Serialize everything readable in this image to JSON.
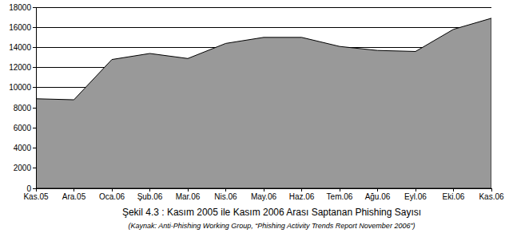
{
  "chart_data": {
    "type": "area",
    "title": "Şekil 4.3 :  Kasım 2005 ile Kasım 2006 Arası Saptanan Phishing Sayısı",
    "subtitle": "(Kaynak: Anti-Phishing Working Group, “Phishing Activity Trends Report November 2006”)",
    "categories": [
      "Kas.05",
      "Ara.05",
      "Oca.06",
      "Şub.06",
      "Mar.06",
      "Nis.06",
      "May.06",
      "Haz.06",
      "Tem.06",
      "Ağu.06",
      "Eyl.06",
      "Eki.06",
      "Kas.06"
    ],
    "values": [
      8900,
      8800,
      12800,
      13400,
      12900,
      14400,
      15000,
      15000,
      14100,
      13700,
      13600,
      15800,
      16900
    ],
    "color": "#999999",
    "ylim": [
      0,
      18000
    ],
    "yticks": [
      0,
      2000,
      4000,
      6000,
      8000,
      10000,
      12000,
      14000,
      16000,
      18000
    ],
    "grid": true
  }
}
